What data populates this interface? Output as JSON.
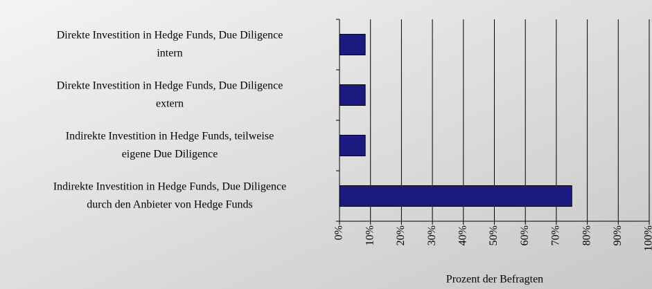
{
  "chart_data": {
    "type": "barh",
    "categories": [
      "Direkte Investition in Hedge Funds, Due Diligence\nintern",
      "Direkte Investition in Hedge Funds, Due Diligence\nextern",
      "Indirekte Investition in Hedge Funds, teilweise\neigene Due Diligence",
      "Indirekte Investition in Hedge Funds, Due Diligence\ndurch den Anbieter von Hedge Funds"
    ],
    "values": [
      8.3,
      8.3,
      8.3,
      75
    ],
    "color": "#1a1a80",
    "xlabel": "Prozent der Befragten",
    "xlim": [
      0,
      100
    ],
    "xticks": [
      {
        "value": 0,
        "label": "0%"
      },
      {
        "value": 10,
        "label": "10%"
      },
      {
        "value": 20,
        "label": "20%"
      },
      {
        "value": 30,
        "label": "30%"
      },
      {
        "value": 40,
        "label": "40%"
      },
      {
        "value": 50,
        "label": "50%"
      },
      {
        "value": 60,
        "label": "60%"
      },
      {
        "value": 70,
        "label": "70%"
      },
      {
        "value": 80,
        "label": "80%"
      },
      {
        "value": 90,
        "label": "90%"
      },
      {
        "value": 100,
        "label": "100%"
      }
    ],
    "grid": true
  }
}
